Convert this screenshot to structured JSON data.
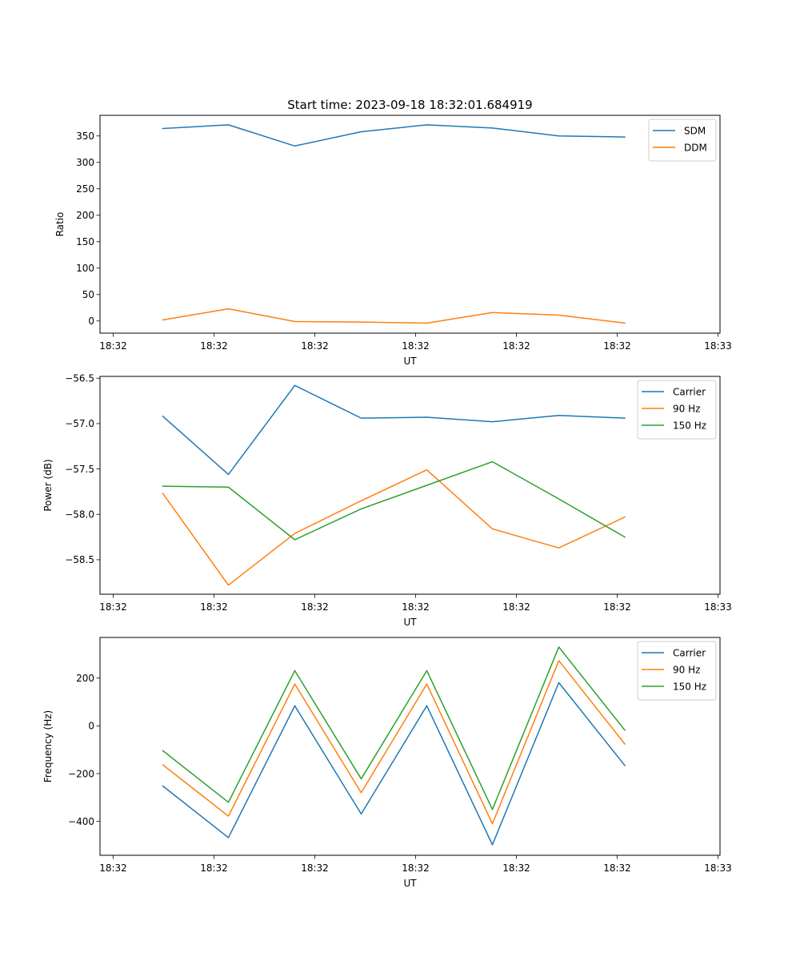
{
  "figure_title": "Start time: 2023-09-18 18:32:01.684919",
  "colors": {
    "blue": "#1f77b4",
    "orange": "#ff7f0e",
    "green": "#2ca02c"
  },
  "chart_data": [
    {
      "type": "line",
      "title": "Start time: 2023-09-18 18:32:01.684919",
      "xlabel": "UT",
      "ylabel": "Ratio",
      "x_tick_labels": [
        "18:32",
        "18:32",
        "18:32",
        "18:32",
        "18:32",
        "18:32",
        "18:33"
      ],
      "y_ticks": [
        0,
        50,
        100,
        150,
        200,
        250,
        300,
        350
      ],
      "y_tick_labels": [
        "0",
        "50",
        "100",
        "150",
        "200",
        "250",
        "300",
        "350"
      ],
      "ylim": [
        -23,
        389
      ],
      "legend_position": "top-right",
      "series": [
        {
          "name": "SDM",
          "color": "#1f77b4",
          "values": [
            364,
            371,
            331,
            358,
            371,
            365,
            350,
            348
          ]
        },
        {
          "name": "DDM",
          "color": "#ff7f0e",
          "values": [
            2,
            23,
            -1,
            -2,
            -4,
            16,
            11,
            -4
          ]
        }
      ]
    },
    {
      "type": "line",
      "xlabel": "UT",
      "ylabel": "Power (dB)",
      "x_tick_labels": [
        "18:32",
        "18:32",
        "18:32",
        "18:32",
        "18:32",
        "18:32",
        "18:33"
      ],
      "y_ticks": [
        -58.5,
        -58.0,
        -57.5,
        -57.0,
        -56.5
      ],
      "y_tick_labels": [
        "−58.5",
        "−58.0",
        "−57.5",
        "−57.0",
        "−56.5"
      ],
      "ylim": [
        -58.88,
        -56.48
      ],
      "legend_position": "top-right",
      "series": [
        {
          "name": "Carrier",
          "color": "#1f77b4",
          "values": [
            -56.92,
            -57.56,
            -56.58,
            -56.94,
            -56.93,
            -56.98,
            -56.91,
            -56.94
          ]
        },
        {
          "name": "90 Hz",
          "color": "#ff7f0e",
          "values": [
            -57.77,
            -58.78,
            -58.21,
            -57.85,
            -57.51,
            -58.16,
            -58.37,
            -58.03
          ]
        },
        {
          "name": "150 Hz",
          "color": "#2ca02c",
          "values": [
            -57.69,
            -57.7,
            -58.28,
            -57.94,
            -57.68,
            -57.42,
            -57.83,
            -58.25
          ]
        }
      ]
    },
    {
      "type": "line",
      "xlabel": "UT",
      "ylabel": "Frequency (Hz)",
      "x_tick_labels": [
        "18:32",
        "18:32",
        "18:32",
        "18:32",
        "18:32",
        "18:32",
        "18:33"
      ],
      "y_ticks": [
        -400,
        -200,
        0,
        200
      ],
      "y_tick_labels": [
        "−400",
        "−200",
        "0",
        "200"
      ],
      "ylim": [
        -542,
        370
      ],
      "legend_position": "top-right",
      "series": [
        {
          "name": "Carrier",
          "color": "#1f77b4",
          "values": [
            -252,
            -468,
            84,
            -369,
            84,
            -498,
            181,
            -166
          ]
        },
        {
          "name": "90 Hz",
          "color": "#ff7f0e",
          "values": [
            -163,
            -378,
            175,
            -280,
            175,
            -410,
            273,
            -76
          ]
        },
        {
          "name": "150 Hz",
          "color": "#2ca02c",
          "values": [
            -104,
            -320,
            231,
            -222,
            231,
            -350,
            330,
            -18
          ]
        }
      ]
    }
  ]
}
